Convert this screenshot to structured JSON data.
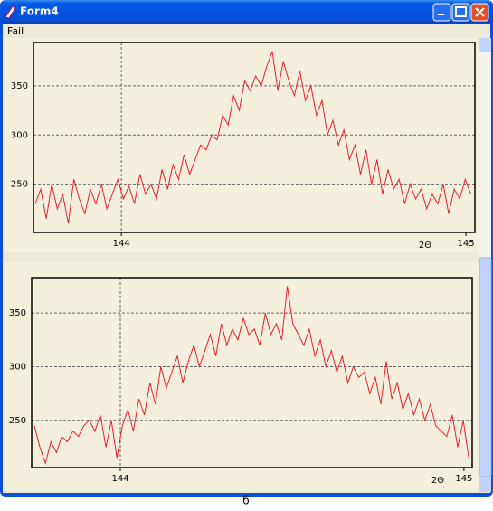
{
  "window": {
    "title": "Form4",
    "menu": [
      "Fail"
    ]
  },
  "caption": "б",
  "chart_data": [
    {
      "type": "line",
      "x_label": "2Θ",
      "color": "#e8202a",
      "grid": true,
      "xlim": [
        143.745,
        145.026
      ],
      "xticks": [
        144,
        145
      ],
      "ylim": [
        201,
        394
      ],
      "yticks": [
        250,
        300,
        350
      ],
      "x": [
        143.75,
        143.766,
        143.782,
        143.798,
        143.814,
        143.83,
        143.846,
        143.862,
        143.878,
        143.894,
        143.91,
        143.926,
        143.942,
        143.958,
        143.974,
        143.99,
        144.006,
        144.022,
        144.038,
        144.054,
        144.07,
        144.086,
        144.102,
        144.118,
        144.134,
        144.15,
        144.166,
        144.182,
        144.198,
        144.214,
        144.23,
        144.246,
        144.262,
        144.278,
        144.294,
        144.31,
        144.326,
        144.342,
        144.358,
        144.374,
        144.39,
        144.406,
        144.422,
        144.438,
        144.454,
        144.47,
        144.486,
        144.502,
        144.518,
        144.534,
        144.55,
        144.566,
        144.582,
        144.598,
        144.614,
        144.63,
        144.646,
        144.662,
        144.678,
        144.694,
        144.71,
        144.726,
        144.742,
        144.758,
        144.774,
        144.79,
        144.806,
        144.822,
        144.838,
        144.854,
        144.87,
        144.886,
        144.902,
        144.918,
        144.934,
        144.95,
        144.966,
        144.982,
        144.998,
        145.014
      ],
      "values": [
        230,
        245,
        215,
        250,
        225,
        240,
        210,
        255,
        235,
        220,
        245,
        230,
        250,
        225,
        240,
        255,
        235,
        248,
        230,
        260,
        240,
        250,
        235,
        265,
        245,
        270,
        255,
        280,
        260,
        275,
        290,
        285,
        300,
        295,
        320,
        310,
        340,
        325,
        355,
        345,
        360,
        350,
        370,
        385,
        345,
        375,
        355,
        340,
        365,
        335,
        350,
        320,
        335,
        300,
        315,
        290,
        305,
        275,
        290,
        260,
        285,
        250,
        275,
        240,
        265,
        245,
        255,
        230,
        250,
        235,
        245,
        225,
        240,
        230,
        250,
        220,
        245,
        235,
        255,
        240
      ]
    },
    {
      "type": "line",
      "x_label": "2Θ",
      "color": "#e8202a",
      "grid": true,
      "xlim": [
        143.742,
        145.024
      ],
      "xticks": [
        144,
        145
      ],
      "ylim": [
        206,
        383
      ],
      "yticks": [
        250,
        300,
        350
      ],
      "x": [
        143.75,
        143.766,
        143.782,
        143.798,
        143.814,
        143.83,
        143.846,
        143.862,
        143.878,
        143.894,
        143.91,
        143.926,
        143.942,
        143.958,
        143.974,
        143.99,
        144.006,
        144.022,
        144.038,
        144.054,
        144.07,
        144.086,
        144.102,
        144.118,
        144.134,
        144.15,
        144.166,
        144.182,
        144.198,
        144.214,
        144.23,
        144.246,
        144.262,
        144.278,
        144.294,
        144.31,
        144.326,
        144.342,
        144.358,
        144.374,
        144.39,
        144.406,
        144.422,
        144.438,
        144.454,
        144.47,
        144.486,
        144.502,
        144.518,
        144.534,
        144.55,
        144.566,
        144.582,
        144.598,
        144.614,
        144.63,
        144.646,
        144.662,
        144.678,
        144.694,
        144.71,
        144.726,
        144.742,
        144.758,
        144.774,
        144.79,
        144.806,
        144.822,
        144.838,
        144.854,
        144.87,
        144.886,
        144.902,
        144.918,
        144.934,
        144.95,
        144.966,
        144.982,
        144.998,
        145.014
      ],
      "values": [
        245,
        225,
        210,
        230,
        220,
        235,
        230,
        240,
        235,
        245,
        250,
        240,
        255,
        225,
        250,
        215,
        245,
        260,
        240,
        270,
        255,
        285,
        265,
        300,
        280,
        295,
        310,
        285,
        305,
        320,
        300,
        315,
        330,
        310,
        340,
        320,
        335,
        325,
        345,
        330,
        335,
        320,
        350,
        330,
        340,
        325,
        375,
        340,
        330,
        320,
        335,
        310,
        325,
        300,
        315,
        295,
        310,
        285,
        300,
        290,
        295,
        275,
        290,
        265,
        305,
        270,
        285,
        260,
        275,
        255,
        270,
        250,
        265,
        245,
        240,
        235,
        255,
        225,
        250,
        215
      ]
    }
  ]
}
